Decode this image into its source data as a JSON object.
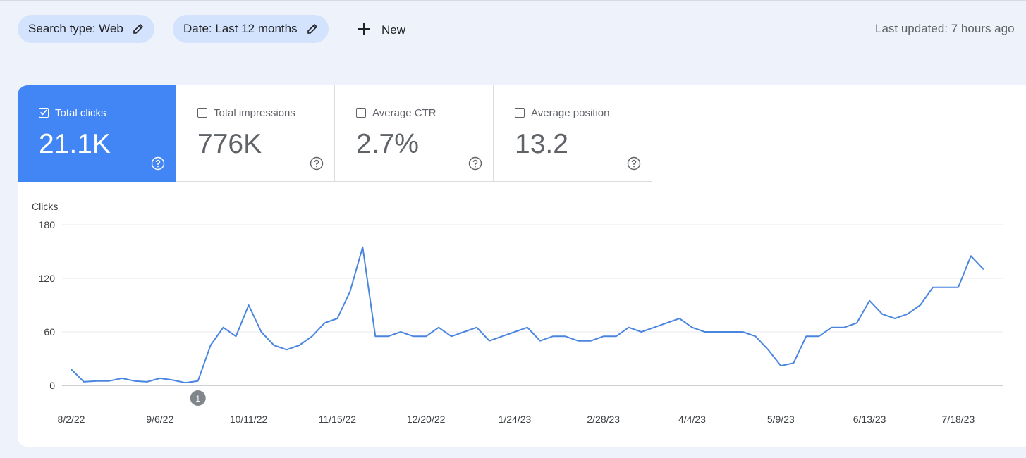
{
  "filters": {
    "chips": [
      "Search type: Web",
      "Date: Last 12 months"
    ],
    "new_button": "New",
    "last_updated": "Last updated: 7 hours ago"
  },
  "metrics": [
    {
      "label": "Total clicks",
      "value": "21.1K",
      "checked": true
    },
    {
      "label": "Total impressions",
      "value": "776K",
      "checked": false
    },
    {
      "label": "Average CTR",
      "value": "2.7%",
      "checked": false
    },
    {
      "label": "Average position",
      "value": "13.2",
      "checked": false
    }
  ],
  "chart_data": {
    "type": "line",
    "y_label": "Clicks",
    "color": "#4a86e0",
    "grid": true,
    "ylim": [
      0,
      180
    ],
    "yticks": [
      0,
      60,
      120,
      180
    ],
    "categories": [
      "8/2/22",
      null,
      null,
      null,
      null,
      null,
      null,
      "9/6/22",
      null,
      null,
      null,
      null,
      null,
      null,
      "10/11/22",
      null,
      null,
      null,
      null,
      null,
      null,
      "11/15/22",
      null,
      null,
      null,
      null,
      null,
      null,
      "12/20/22",
      null,
      null,
      null,
      null,
      null,
      null,
      "1/24/23",
      null,
      null,
      null,
      null,
      null,
      null,
      "2/28/23",
      null,
      null,
      null,
      null,
      null,
      null,
      "4/4/23",
      null,
      null,
      null,
      null,
      null,
      null,
      "5/9/23",
      null,
      null,
      null,
      null,
      null,
      null,
      "6/13/23",
      null,
      null,
      null,
      null,
      null,
      null,
      "7/18/23",
      null,
      null
    ],
    "values": [
      18,
      4,
      5,
      5,
      8,
      5,
      4,
      8,
      6,
      3,
      5,
      45,
      65,
      55,
      90,
      60,
      45,
      40,
      45,
      55,
      70,
      75,
      105,
      155,
      55,
      55,
      60,
      55,
      55,
      65,
      55,
      60,
      65,
      50,
      55,
      60,
      65,
      50,
      55,
      55,
      50,
      50,
      55,
      55,
      65,
      60,
      65,
      70,
      75,
      65,
      60,
      60,
      60,
      60,
      55,
      40,
      22,
      25,
      55,
      55,
      65,
      65,
      70,
      95,
      80,
      75,
      80,
      90,
      110,
      110,
      110,
      145,
      130
    ],
    "annotations": [
      {
        "index": 10,
        "label": "1"
      }
    ]
  }
}
